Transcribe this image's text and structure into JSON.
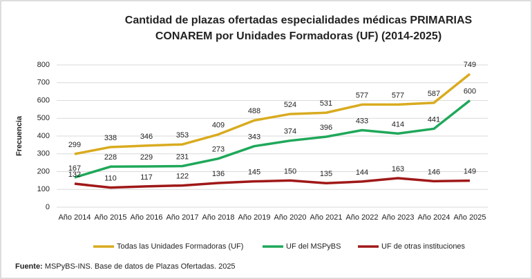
{
  "chart_data": {
    "type": "line",
    "title": [
      "Cantidad de plazas ofertadas especialidades médicas PRIMARIAS",
      "CONAREM por Unidades Formadoras (UF) (2014-2025)"
    ],
    "y_label": "Frecuencia",
    "categories": [
      "Año 2014",
      "Año 2015",
      "Año 2016",
      "Año 2017",
      "Año 2018",
      "Año 2019",
      "Año 2020",
      "Año 2021",
      "Año 2022",
      "Año 2023",
      "Año 2024",
      "Año 2025"
    ],
    "series": [
      {
        "name": "Todas las Unidades Formadoras (UF)",
        "color": "#d9ab1f",
        "values": [
          299,
          338,
          346,
          353,
          409,
          488,
          524,
          531,
          577,
          577,
          587,
          749
        ]
      },
      {
        "name": "UF del MSPyBS",
        "color": "#1fa85a",
        "values": [
          167,
          228,
          229,
          231,
          273,
          343,
          374,
          396,
          433,
          414,
          441,
          600
        ]
      },
      {
        "name": "UF de otras instituciones",
        "color": "#a01818",
        "values": [
          132,
          110,
          117,
          122,
          136,
          145,
          150,
          135,
          144,
          163,
          146,
          149
        ]
      }
    ],
    "ylim": [
      0,
      800
    ],
    "yticks": [
      0,
      100,
      200,
      300,
      400,
      500,
      600,
      700,
      800
    ],
    "grid": true,
    "legend": "bottom",
    "source": {
      "label": "Fuente:",
      "text": "MSPyBS-INS. Base de datos de Plazas Ofertadas. 2025"
    }
  }
}
